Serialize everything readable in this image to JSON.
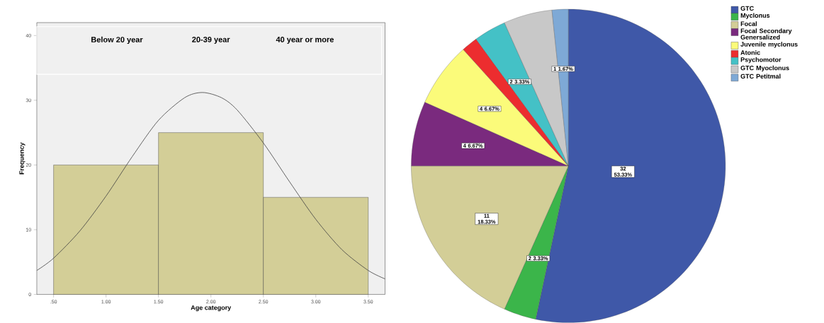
{
  "chart_data": [
    {
      "type": "histogram",
      "xlabel": "Age category",
      "ylabel": "Frequency",
      "annotations": [
        "Below 20 year",
        "20-39 year",
        "40 year or more"
      ],
      "series": [
        {
          "type": "histogram",
          "bins": [
            0.5,
            1.5,
            2.5,
            3.5
          ],
          "values": [
            20,
            25,
            15
          ],
          "color": "#d3ce97"
        },
        {
          "type": "line",
          "x": [
            0.34,
            0.5,
            0.75,
            1.0,
            1.25,
            1.5,
            1.75,
            1.92,
            2.1,
            2.25,
            2.5,
            2.75,
            3.0,
            3.25,
            3.5,
            3.66
          ],
          "values": [
            3.7,
            5.6,
            9.8,
            15.2,
            21.3,
            26.9,
            30.4,
            31.2,
            30.4,
            28.5,
            23.4,
            17.4,
            11.6,
            6.9,
            3.7,
            2.4
          ],
          "color": "#404040"
        }
      ],
      "xlim": [
        0.34,
        3.66
      ],
      "ylim": [
        0,
        42
      ],
      "xticks": [
        {
          "value": 0.5,
          "label": ".50"
        },
        {
          "value": 1.0,
          "label": "1.00"
        },
        {
          "value": 1.5,
          "label": "1.50"
        },
        {
          "value": 2.0,
          "label": "2.00"
        },
        {
          "value": 2.5,
          "label": "2.50"
        },
        {
          "value": 3.0,
          "label": "3.00"
        },
        {
          "value": 3.5,
          "label": "3.50"
        }
      ],
      "yticks": [
        0,
        10,
        20,
        30,
        40
      ]
    },
    {
      "type": "pie",
      "categories": [
        "GTC",
        "Myclonus",
        "Focal",
        "Focal Secondary Genersalized",
        "Juvenile myclonus",
        "Atonic",
        "Psychomotor",
        "GTC Myoclonus",
        "GTC Petitmal"
      ],
      "values": [
        32,
        2,
        11,
        4,
        4,
        1,
        2,
        3,
        1
      ],
      "colors": [
        "#3f58a8",
        "#3bb54a",
        "#d3ce97",
        "#7a2a7e",
        "#fbfb7a",
        "#ec2d2f",
        "#44c1c6",
        "#c8c8c8",
        "#7ea9d6"
      ],
      "value_labels": [
        "32 53.33%",
        "2 3.33%",
        "11 18.33%",
        "4 6.67%",
        "4 6.67%",
        null,
        "2 3.33%",
        null,
        "1 1.67%"
      ],
      "legend": "top right"
    }
  ]
}
